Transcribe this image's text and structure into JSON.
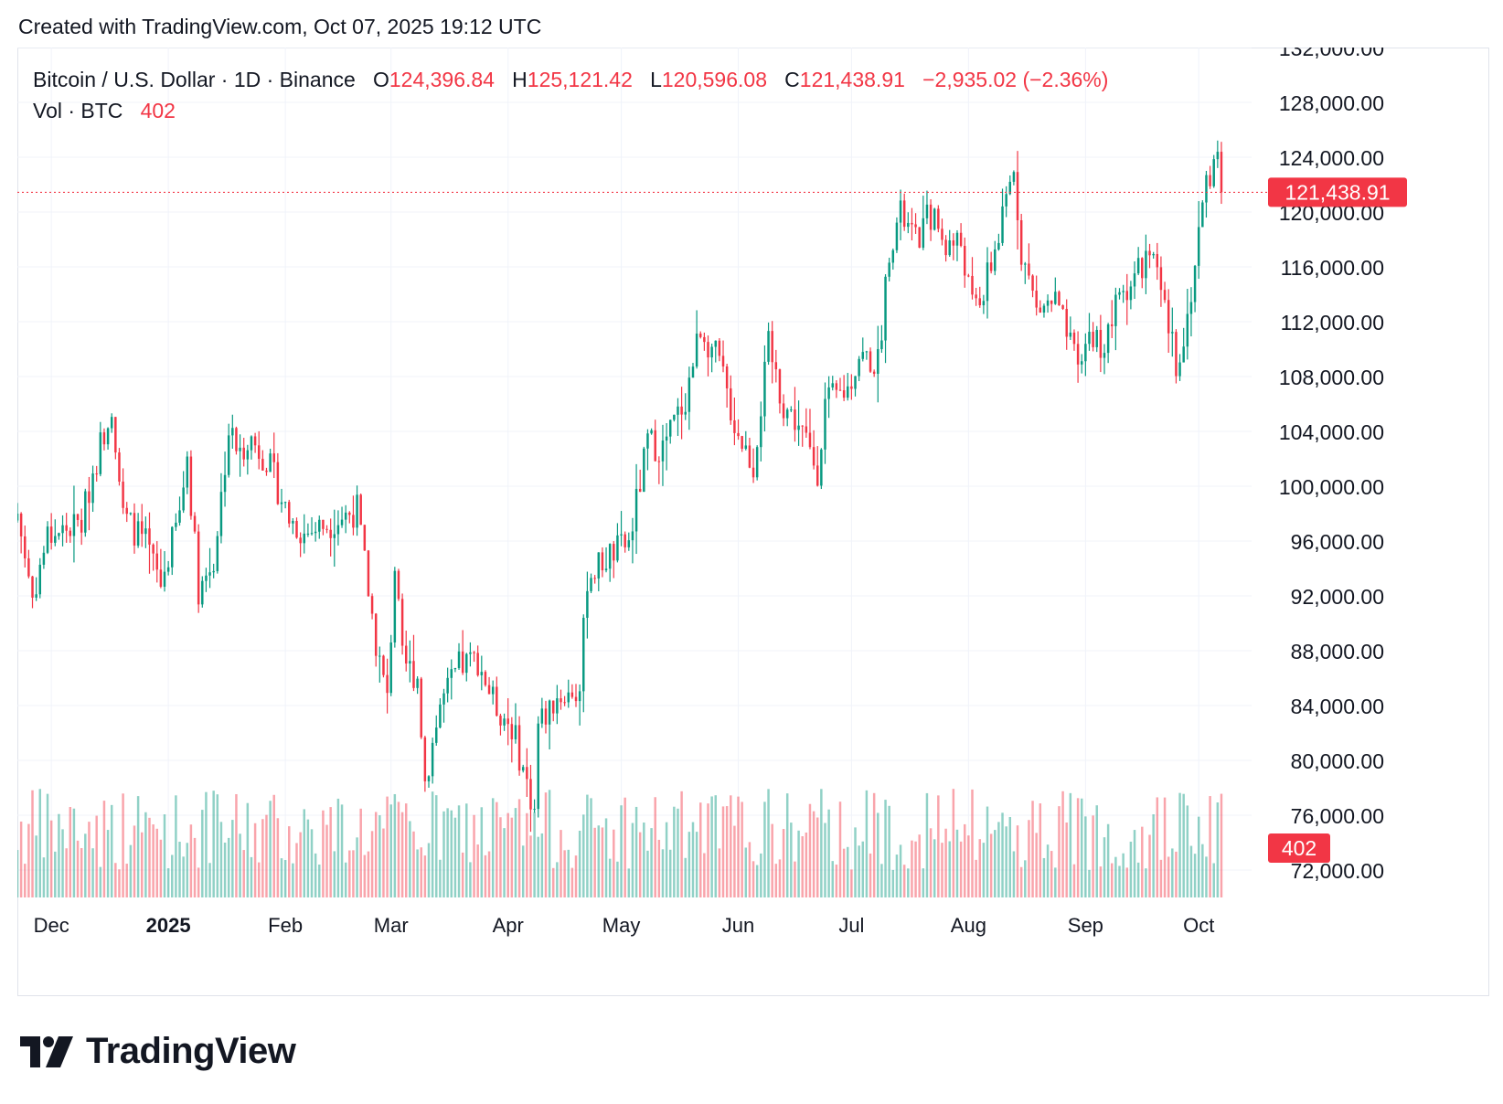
{
  "header": {
    "created": "Created with TradingView.com, Oct 07, 2025 19:12 UTC"
  },
  "legend": {
    "symbol": "Bitcoin / U.S. Dollar · 1D · Binance",
    "o_label": "O",
    "o_value": "124,396.84",
    "h_label": "H",
    "h_value": "125,121.42",
    "l_label": "L",
    "l_value": "120,596.08",
    "c_label": "C",
    "c_value": "121,438.91",
    "change": "−2,935.02 (−2.36%)",
    "vol_label": "Vol · BTC",
    "vol_value": "402"
  },
  "colors": {
    "up": "#089981",
    "down": "#f23645",
    "grid": "#f0f3fa",
    "text": "#131722",
    "border": "#e0e3eb"
  },
  "logo": {
    "text": "TradingView"
  },
  "chart_data": {
    "type": "candlestick",
    "title": "Bitcoin / U.S. Dollar · 1D · Binance",
    "ylim": [
      70000,
      132000
    ],
    "y_ticks": [
      72000,
      76000,
      80000,
      84000,
      88000,
      92000,
      96000,
      100000,
      104000,
      108000,
      112000,
      116000,
      120000,
      124000,
      128000,
      132000
    ],
    "y_tick_labels": [
      "72,000.00",
      "76,000.00",
      "80,000.00",
      "84,000.00",
      "88,000.00",
      "92,000.00",
      "96,000.00",
      "100,000.00",
      "104,000.00",
      "108,000.00",
      "112,000.00",
      "116,000.00",
      "120,000.00",
      "124,000.00",
      "128,000.00",
      "132,000.00"
    ],
    "x_range": [
      "2024-11-22",
      "2025-10-15"
    ],
    "x_ticks": [
      {
        "date": "2024-12-01",
        "label": "Dec",
        "bold": false
      },
      {
        "date": "2025-01-01",
        "label": "2025",
        "bold": true
      },
      {
        "date": "2025-02-01",
        "label": "Feb",
        "bold": false
      },
      {
        "date": "2025-03-01",
        "label": "Mar",
        "bold": false
      },
      {
        "date": "2025-04-01",
        "label": "Apr",
        "bold": false
      },
      {
        "date": "2025-05-01",
        "label": "May",
        "bold": false
      },
      {
        "date": "2025-06-01",
        "label": "Jun",
        "bold": false
      },
      {
        "date": "2025-07-01",
        "label": "Jul",
        "bold": false
      },
      {
        "date": "2025-08-01",
        "label": "Aug",
        "bold": false
      },
      {
        "date": "2025-09-01",
        "label": "Sep",
        "bold": false
      },
      {
        "date": "2025-10-01",
        "label": "Oct",
        "bold": false
      }
    ],
    "last_price": 121438.91,
    "last_price_label": "121,438.91",
    "last_volume_label": "402",
    "close_anchors": [
      [
        "2024-11-22",
        98000
      ],
      [
        "2024-11-26",
        91900
      ],
      [
        "2024-11-30",
        96400
      ],
      [
        "2024-12-05",
        96900
      ],
      [
        "2024-12-09",
        97300
      ],
      [
        "2024-12-12",
        101000
      ],
      [
        "2024-12-17",
        106100
      ],
      [
        "2024-12-20",
        97800
      ],
      [
        "2024-12-26",
        95800
      ],
      [
        "2024-12-30",
        92800
      ],
      [
        "2025-01-04",
        98000
      ],
      [
        "2025-01-06",
        102200
      ],
      [
        "2025-01-09",
        92500
      ],
      [
        "2025-01-13",
        94500
      ],
      [
        "2025-01-17",
        104100
      ],
      [
        "2025-01-20",
        102200
      ],
      [
        "2025-01-22",
        103700
      ],
      [
        "2025-01-27",
        102000
      ],
      [
        "2025-02-02",
        97700
      ],
      [
        "2025-02-06",
        96500
      ],
      [
        "2025-02-14",
        97500
      ],
      [
        "2025-02-20",
        98300
      ],
      [
        "2025-02-25",
        88600
      ],
      [
        "2025-02-28",
        84300
      ],
      [
        "2025-03-02",
        94200
      ],
      [
        "2025-03-04",
        87200
      ],
      [
        "2025-03-08",
        86100
      ],
      [
        "2025-03-10",
        78500
      ],
      [
        "2025-03-14",
        84000
      ],
      [
        "2025-03-19",
        86800
      ],
      [
        "2025-03-24",
        87400
      ],
      [
        "2025-03-28",
        84300
      ],
      [
        "2025-04-02",
        82500
      ],
      [
        "2025-04-06",
        78300
      ],
      [
        "2025-04-08",
        76300
      ],
      [
        "2025-04-09",
        82600
      ],
      [
        "2025-04-14",
        84600
      ],
      [
        "2025-04-20",
        85100
      ],
      [
        "2025-04-22",
        93400
      ],
      [
        "2025-04-28",
        95000
      ],
      [
        "2025-05-03",
        95800
      ],
      [
        "2025-05-08",
        103200
      ],
      [
        "2025-05-12",
        102800
      ],
      [
        "2025-05-18",
        106400
      ],
      [
        "2025-05-22",
        111700
      ],
      [
        "2025-05-27",
        108900
      ],
      [
        "2025-05-31",
        104600
      ],
      [
        "2025-06-05",
        101500
      ],
      [
        "2025-06-09",
        110200
      ],
      [
        "2025-06-13",
        105900
      ],
      [
        "2025-06-17",
        104500
      ],
      [
        "2025-06-22",
        101200
      ],
      [
        "2025-06-24",
        106000
      ],
      [
        "2025-06-30",
        107100
      ],
      [
        "2025-07-03",
        109600
      ],
      [
        "2025-07-08",
        108900
      ],
      [
        "2025-07-11",
        117500
      ],
      [
        "2025-07-14",
        119800
      ],
      [
        "2025-07-18",
        117800
      ],
      [
        "2025-07-22",
        119900
      ],
      [
        "2025-07-26",
        117600
      ],
      [
        "2025-07-30",
        117800
      ],
      [
        "2025-08-02",
        113000
      ],
      [
        "2025-08-05",
        114100
      ],
      [
        "2025-08-10",
        119300
      ],
      [
        "2025-08-13",
        123300
      ],
      [
        "2025-08-15",
        117300
      ],
      [
        "2025-08-19",
        112800
      ],
      [
        "2025-08-24",
        113500
      ],
      [
        "2025-08-26",
        111800
      ],
      [
        "2025-08-30",
        108400
      ],
      [
        "2025-09-02",
        111200
      ],
      [
        "2025-09-06",
        110200
      ],
      [
        "2025-09-10",
        113900
      ],
      [
        "2025-09-14",
        115300
      ],
      [
        "2025-09-18",
        117100
      ],
      [
        "2025-09-22",
        112700
      ],
      [
        "2025-09-25",
        109000
      ],
      [
        "2025-09-28",
        112200
      ],
      [
        "2025-10-01",
        118600
      ],
      [
        "2025-10-03",
        122200
      ],
      [
        "2025-10-05",
        123500
      ],
      [
        "2025-10-06",
        124396.84
      ],
      [
        "2025-10-07",
        121438.91
      ]
    ]
  }
}
